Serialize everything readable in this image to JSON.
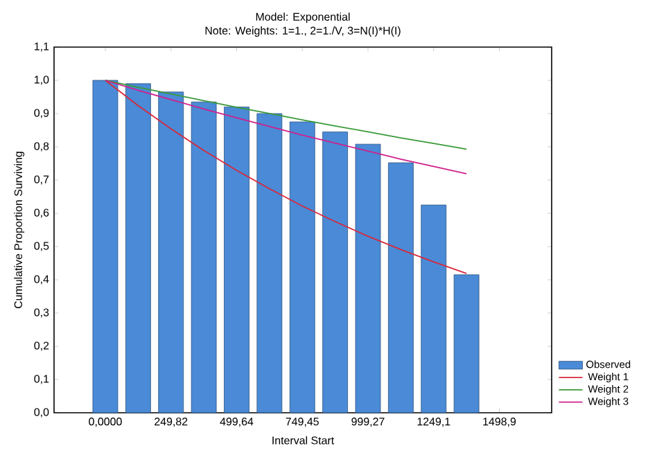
{
  "chart_data": {
    "type": "bar",
    "title": "Model: Exponential",
    "subtitle": "Note: Weights: 1=1., 2=1./V, 3=N(I)*H(I)",
    "xlabel": "Interval Start",
    "ylabel": "Cumulative Proportion Surviving",
    "x": [
      0,
      124.91,
      249.82,
      374.73,
      499.64,
      624.55,
      749.45,
      874.36,
      999.27,
      1124.18,
      1249.1,
      1374.0
    ],
    "series": [
      {
        "name": "Observed",
        "color": "#4a8ad6",
        "values": [
          1.0,
          0.99,
          0.965,
          0.935,
          0.92,
          0.9,
          0.875,
          0.845,
          0.808,
          0.752,
          0.625,
          0.415
        ]
      },
      {
        "name": "Weight 1",
        "type": "line",
        "color": "#d8283c",
        "values": [
          1.0,
          0.924,
          0.854,
          0.789,
          0.729,
          0.674,
          0.622,
          0.575,
          0.531,
          0.491,
          0.454,
          0.419
        ]
      },
      {
        "name": "Weight 2",
        "type": "line",
        "color": "#3a9a3a",
        "values": [
          1.0,
          0.979,
          0.959,
          0.939,
          0.919,
          0.9,
          0.881,
          0.863,
          0.845,
          0.827,
          0.81,
          0.793
        ]
      },
      {
        "name": "Weight 3",
        "type": "line",
        "color": "#d0208c",
        "values": [
          1.0,
          0.97,
          0.942,
          0.914,
          0.887,
          0.861,
          0.835,
          0.811,
          0.787,
          0.763,
          0.741,
          0.719
        ]
      }
    ],
    "xlim": [
      -195,
      1698
    ],
    "xticks": [
      {
        "value": 0,
        "label": "0,0000"
      },
      {
        "value": 249.82,
        "label": "249,82"
      },
      {
        "value": 499.64,
        "label": "499,64"
      },
      {
        "value": 749.45,
        "label": "749,45"
      },
      {
        "value": 999.27,
        "label": "999,27"
      },
      {
        "value": 1249.1,
        "label": "1249,1"
      },
      {
        "value": 1498.9,
        "label": "1498,9"
      }
    ],
    "ylim": [
      0,
      1.1
    ],
    "yticks": [
      {
        "value": 0,
        "label": "0,0"
      },
      {
        "value": 0.1,
        "label": "0,1"
      },
      {
        "value": 0.2,
        "label": "0,2"
      },
      {
        "value": 0.3,
        "label": "0,3"
      },
      {
        "value": 0.4,
        "label": "0,4"
      },
      {
        "value": 0.5,
        "label": "0,5"
      },
      {
        "value": 0.6,
        "label": "0,6"
      },
      {
        "value": 0.7,
        "label": "0,7"
      },
      {
        "value": 0.8,
        "label": "0,8"
      },
      {
        "value": 0.9,
        "label": "0,9"
      },
      {
        "value": 1.0,
        "label": "1,0"
      },
      {
        "value": 1.1,
        "label": "1,1"
      }
    ],
    "legend": "bottom right"
  }
}
